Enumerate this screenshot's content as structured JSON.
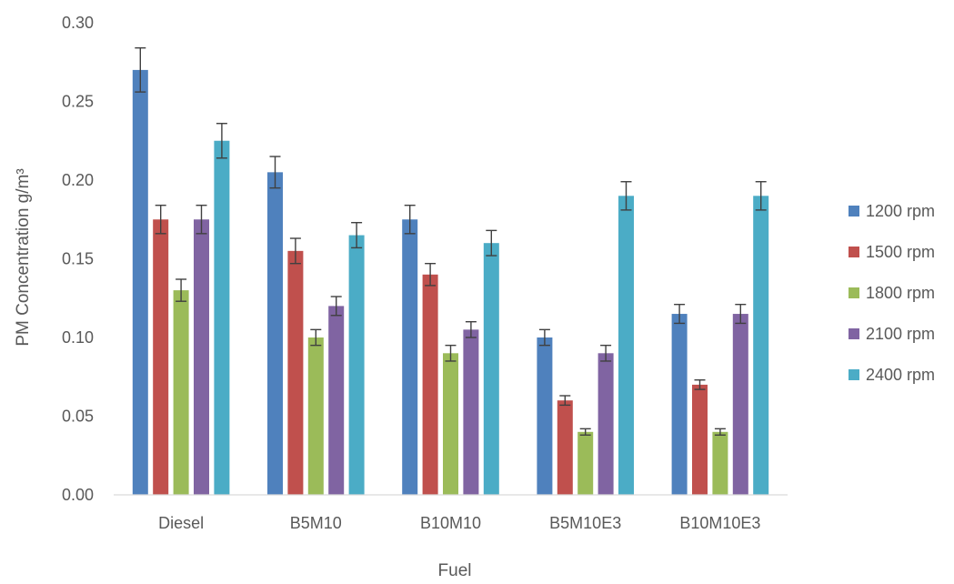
{
  "chart_data": {
    "type": "bar",
    "title": "",
    "xlabel": "Fuel",
    "ylabel": "PM Concentration g/m³",
    "categories": [
      "Diesel",
      "B5M10",
      "B10M10",
      "B5M10E3",
      "B10M10E3"
    ],
    "ylim": [
      0,
      0.3
    ],
    "yticks": [
      "0.00",
      "0.05",
      "0.10",
      "0.15",
      "0.20",
      "0.25",
      "0.30"
    ],
    "grid": false,
    "legend_position": "right",
    "error_bars": true,
    "series": [
      {
        "name": "1200 rpm",
        "color": "#4F81BD",
        "values": [
          0.27,
          0.205,
          0.175,
          0.1,
          0.115
        ],
        "errors": [
          0.014,
          0.01,
          0.009,
          0.005,
          0.006
        ]
      },
      {
        "name": "1500 rpm",
        "color": "#C0504D",
        "values": [
          0.175,
          0.155,
          0.14,
          0.06,
          0.07
        ],
        "errors": [
          0.009,
          0.008,
          0.007,
          0.003,
          0.003
        ]
      },
      {
        "name": "1800 rpm",
        "color": "#9BBB59",
        "values": [
          0.13,
          0.1,
          0.09,
          0.04,
          0.04
        ],
        "errors": [
          0.007,
          0.005,
          0.005,
          0.002,
          0.002
        ]
      },
      {
        "name": "2100 rpm",
        "color": "#8064A2",
        "values": [
          0.175,
          0.12,
          0.105,
          0.09,
          0.115
        ],
        "errors": [
          0.009,
          0.006,
          0.005,
          0.005,
          0.006
        ]
      },
      {
        "name": "2400 rpm",
        "color": "#4BACC6",
        "values": [
          0.225,
          0.165,
          0.16,
          0.19,
          0.19
        ],
        "errors": [
          0.011,
          0.008,
          0.008,
          0.009,
          0.009
        ]
      }
    ]
  }
}
